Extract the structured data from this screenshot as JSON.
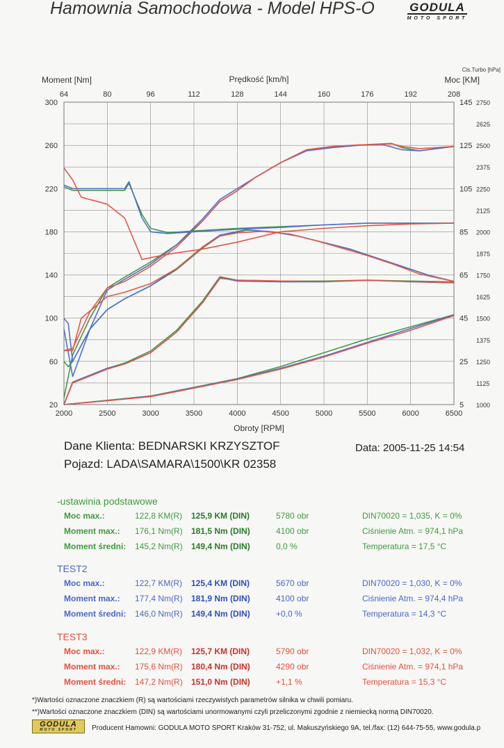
{
  "header": {
    "title": "Hamownia Samochodowa   -   Model HPS-O"
  },
  "logo": {
    "main": "GODULA",
    "sub": "MOTO SPORT"
  },
  "colors": {
    "green": "#3f9a3f",
    "blue": "#4f6fd0",
    "red": "#e4554a",
    "grid": "#8c8c8c"
  },
  "chart_data": {
    "type": "line",
    "xlabel": "Obroty [RPM]",
    "xlim": [
      2000,
      6500
    ],
    "x_ticks": [
      2000,
      2500,
      3000,
      3500,
      4000,
      4500,
      5000,
      5500,
      6000,
      6500
    ],
    "top_axis_label": "Prędkość [km/h]",
    "top_ticks": [
      "64",
      "80",
      "96",
      "112",
      "128",
      "144",
      "160",
      "176",
      "192",
      "208"
    ],
    "left_axis_label": "Moment [Nm]",
    "ylim_left": [
      20,
      300
    ],
    "left_ticks": [
      "20",
      "60",
      "100",
      "140",
      "180",
      "220",
      "260",
      "300"
    ],
    "right_axis_label": "Moc [KM]",
    "ylim_right": [
      5,
      145
    ],
    "right_ticks": [
      "5",
      "25",
      "45",
      "65",
      "85",
      "105",
      "125",
      "145"
    ],
    "turbo_axis_label": "Cis.Turbo [hPa]",
    "ylim_turbo": [
      1000,
      2750
    ],
    "turbo_ticks": [
      "1000",
      "1125",
      "1250",
      "1375",
      "1500",
      "1625",
      "1750",
      "1875",
      "2000",
      "2125",
      "2250",
      "2375",
      "2500",
      "2625",
      "2750"
    ],
    "grid": true,
    "series": [
      {
        "color": "green",
        "axis": "right",
        "x": [
          2000,
          2100,
          2300,
          2500,
          2700,
          3000,
          3300,
          3600,
          3800,
          4000,
          4200,
          4500,
          4800,
          5100,
          5400,
          5780,
          5900,
          6100,
          6300,
          6500
        ],
        "y": [
          8,
          28,
          45,
          59,
          64,
          71,
          79,
          90,
          99,
          104,
          110,
          117,
          123,
          124.5,
          125.2,
          125.9,
          124,
          122.5,
          123.5,
          124.5
        ]
      },
      {
        "color": "blue",
        "axis": "right",
        "x": [
          2000,
          2100,
          2300,
          2500,
          2700,
          3000,
          3300,
          3600,
          3800,
          4000,
          4200,
          4500,
          4800,
          5100,
          5400,
          5670,
          5900,
          6100,
          6300,
          6500
        ],
        "y": [
          40,
          18,
          40,
          58,
          63,
          70,
          79,
          91,
          100,
          105,
          110,
          117,
          122.5,
          124,
          125,
          125.4,
          123,
          122.5,
          123.5,
          124.5
        ]
      },
      {
        "color": "red",
        "axis": "right",
        "x": [
          2000,
          2100,
          2300,
          2500,
          2700,
          3000,
          3300,
          3600,
          3800,
          4000,
          4200,
          4500,
          4800,
          5100,
          5400,
          5790,
          5900,
          6100,
          6300,
          6500
        ],
        "y": [
          30,
          31,
          48,
          59,
          62,
          69,
          78,
          90,
          99,
          104,
          110,
          117,
          123,
          124.5,
          125.2,
          125.7,
          124.5,
          123.5,
          124,
          124.5
        ]
      },
      {
        "color": "green",
        "axis": "left",
        "x": [
          2000,
          2050,
          2100,
          2300,
          2500,
          2700,
          3000,
          3300,
          3600,
          3800,
          4100,
          4400,
          4700,
          5000,
          5300,
          5600,
          5900,
          6200,
          6500
        ],
        "y": [
          60,
          55,
          60,
          90,
          108,
          118,
          130,
          145,
          165,
          176,
          181.5,
          180,
          176,
          170,
          164,
          156,
          148,
          140,
          134
        ]
      },
      {
        "color": "blue",
        "axis": "left",
        "x": [
          2000,
          2050,
          2100,
          2300,
          2500,
          2700,
          3000,
          3300,
          3600,
          3800,
          4100,
          4400,
          4700,
          5000,
          5300,
          5600,
          5900,
          6200,
          6500
        ],
        "y": [
          100,
          95,
          60,
          90,
          108,
          118,
          130,
          146,
          166,
          177,
          181.9,
          180,
          176,
          170,
          164,
          156,
          148,
          140,
          134
        ]
      },
      {
        "color": "red",
        "axis": "left",
        "x": [
          2000,
          2100,
          2200,
          2350,
          2500,
          2700,
          3000,
          3300,
          3600,
          3800,
          4000,
          4290,
          4600,
          4900,
          5200,
          5500,
          5800,
          6100,
          6500
        ],
        "y": [
          70,
          70,
          100,
          110,
          120,
          124,
          132,
          146,
          166,
          176,
          179,
          180.4,
          178,
          172,
          165,
          158,
          150,
          141,
          134
        ]
      },
      {
        "color": "green",
        "axis": "turbo",
        "x": [
          2000,
          2500,
          3000,
          3500,
          4000,
          4500,
          5000,
          5500,
          6000,
          6500
        ],
        "y": [
          1000,
          1025,
          1050,
          1100,
          1150,
          1220,
          1300,
          1380,
          1450,
          1520
        ]
      },
      {
        "color": "blue",
        "axis": "turbo",
        "x": [
          2000,
          2500,
          3000,
          3500,
          4000,
          4500,
          5000,
          5500,
          6000,
          6500
        ],
        "y": [
          1000,
          1023,
          1048,
          1098,
          1148,
          1210,
          1280,
          1360,
          1440,
          1520
        ]
      },
      {
        "color": "red",
        "axis": "turbo",
        "x": [
          2000,
          2500,
          3000,
          3500,
          4000,
          4500,
          5000,
          5500,
          6000,
          6500
        ],
        "y": [
          1000,
          1022,
          1046,
          1095,
          1145,
          1205,
          1275,
          1355,
          1430,
          1515
        ]
      },
      {
        "color": "green",
        "axis": "turbo",
        "x": [
          2000,
          2100,
          2200,
          2500,
          2700,
          2750,
          2900,
          3000,
          3200,
          3500,
          4000,
          4500,
          5000,
          5500,
          6000,
          6500
        ],
        "y": [
          2260,
          2240,
          2240,
          2240,
          2240,
          2280,
          2100,
          2020,
          1995,
          2005,
          2020,
          2030,
          2040,
          2050,
          2050,
          2050
        ]
      },
      {
        "color": "blue",
        "axis": "turbo",
        "x": [
          2000,
          2100,
          2200,
          2500,
          2700,
          2750,
          2900,
          3000,
          3200,
          3500,
          4000,
          4500,
          5000,
          5500,
          6000,
          6500
        ],
        "y": [
          2270,
          2250,
          2250,
          2250,
          2250,
          2290,
          2080,
          2000,
          1990,
          2000,
          2015,
          2025,
          2040,
          2050,
          2050,
          2050
        ]
      },
      {
        "color": "red",
        "axis": "turbo",
        "x": [
          2000,
          2100,
          2200,
          2350,
          2500,
          2700,
          2900,
          3200,
          3600,
          4000,
          4500,
          5000,
          5500,
          6000,
          6500
        ],
        "y": [
          2370,
          2300,
          2200,
          2180,
          2160,
          2080,
          1840,
          1870,
          1900,
          1940,
          2000,
          2020,
          2035,
          2045,
          2050
        ]
      },
      {
        "color": "green",
        "axis": "turbo",
        "x": [
          2000,
          2100,
          2300,
          2500,
          2700,
          3000,
          3300,
          3600,
          3800,
          4000,
          4500,
          5000,
          5500,
          6000,
          6500
        ],
        "y": [
          1000,
          1130,
          1170,
          1210,
          1240,
          1310,
          1430,
          1600,
          1740,
          1720,
          1715,
          1715,
          1720,
          1715,
          1710
        ]
      },
      {
        "color": "blue",
        "axis": "turbo",
        "x": [
          2000,
          2100,
          2300,
          2500,
          2700,
          3000,
          3300,
          3600,
          3800,
          4000,
          4500,
          5000,
          5500,
          6000,
          6500
        ],
        "y": [
          1000,
          1130,
          1170,
          1210,
          1235,
          1300,
          1420,
          1590,
          1735,
          1715,
          1710,
          1710,
          1720,
          1710,
          1705
        ]
      },
      {
        "color": "red",
        "axis": "turbo",
        "x": [
          2000,
          2100,
          2300,
          2500,
          2700,
          3000,
          3300,
          3600,
          3800,
          4000,
          4500,
          5000,
          5500,
          6000,
          6500
        ],
        "y": [
          1000,
          1125,
          1165,
          1205,
          1235,
          1300,
          1420,
          1590,
          1730,
          1720,
          1715,
          1712,
          1718,
          1712,
          1705
        ]
      }
    ]
  },
  "client": {
    "name_line": "Dane Klienta: BEDNARSKI KRZYSZTOF",
    "vehicle_line": "Pojazd: LADA\\SAMARA\\1500\\KR 02358",
    "date_line": "Data: 2005-11-25  14:54"
  },
  "tests": [
    {
      "title": "-ustawinia podstawowe",
      "color": "#3f9a3f",
      "rows": [
        {
          "label": "Moc max.:",
          "r": "122,8 KM(R)",
          "din": "125,9 KM (DIN)",
          "rpm": "5780 obr",
          "cond": "DIN70020 = 1,035, K = 0%"
        },
        {
          "label": "Moment max.:",
          "r": "176,1 Nm(R)",
          "din": "181,5 Nm (DIN)",
          "rpm": "4100 obr",
          "cond": "Ciśnienie Atm. = 974,1 hPa"
        },
        {
          "label": "Moment średni:",
          "r": "145,2 Nm(R)",
          "din": "149,4 Nm (DIN)",
          "rpm": "0,0 %",
          "cond": "Temperatura = 17,5 °C"
        }
      ]
    },
    {
      "title": "TEST2",
      "color": "#4a66c8",
      "rows": [
        {
          "label": "Moc max.:",
          "r": "122,7 KM(R)",
          "din": "125,4 KM (DIN)",
          "rpm": "5670 obr",
          "cond": "DIN70020 = 1,030, K = 0%"
        },
        {
          "label": "Moment max.:",
          "r": "177,4 Nm(R)",
          "din": "181,9 Nm (DIN)",
          "rpm": "4100 obr",
          "cond": "Ciśnienie Atm. = 974,4 hPa"
        },
        {
          "label": "Moment średni:",
          "r": "146,0 Nm(R)",
          "din": "149,4 Nm (DIN)",
          "rpm": "+0,0 %",
          "cond": "Temperatura = 14,3 °C"
        }
      ]
    },
    {
      "title": "TEST3",
      "color": "#e0503f",
      "rows": [
        {
          "label": "Moc max.:",
          "r": "122,9 KM(R)",
          "din": "125,7 KM (DIN)",
          "rpm": "5790 obr",
          "cond": "DIN70020 = 1,032, K = 0%"
        },
        {
          "label": "Moment max.:",
          "r": "175,6 Nm(R)",
          "din": "180,4 Nm (DIN)",
          "rpm": "4290 obr",
          "cond": "Ciśnienie Atm. = 974,1 hPa"
        },
        {
          "label": "Moment średni:",
          "r": "147,2 Nm(R)",
          "din": "151,0 Nm (DIN)",
          "rpm": "+1,1 %",
          "cond": "Temperatura = 15,3 °C"
        }
      ]
    }
  ],
  "footnotes": {
    "f1": "*)Wartości oznaczone znaczkiem (R) są wartościami rzeczywistych parametrów silnika w chwili pomiaru.",
    "f2": "**)Wartości oznaczone znaczkiem (DIN) są wartościami unormowanymi czyli przeliczonymi zgodnie z niemiecką normą DIN70020."
  },
  "producer": "Producent Hamowni: GODULA MOTO SPORT Kraków 31-752, ul. Makuszyńskiego 9A, tel./fax: (12) 644-75-55, www.godula.p"
}
